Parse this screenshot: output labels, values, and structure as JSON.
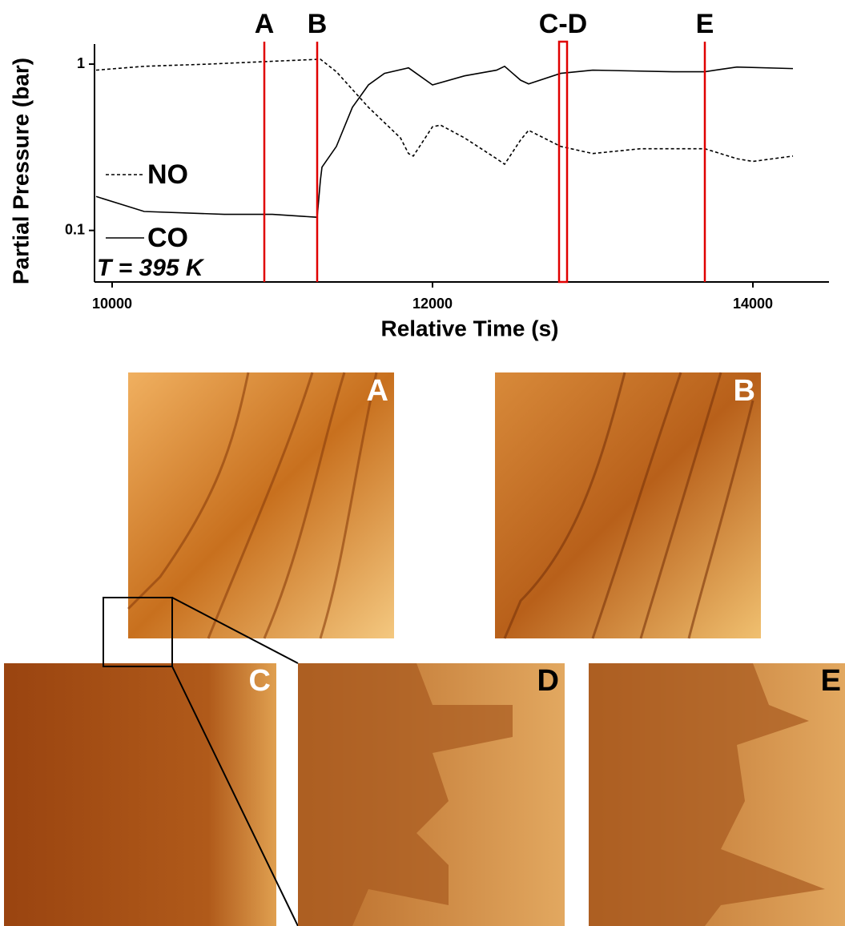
{
  "chart_data": {
    "type": "line",
    "xlabel": "Relative Time (s)",
    "ylabel": "Partial Pressure (bar)",
    "annotation": "T = 395 K",
    "log_y": true,
    "legend": "left",
    "xlim": [
      9890,
      14475
    ],
    "ylim": [
      0.049,
      1.32
    ],
    "xticks": [
      10000,
      12000,
      14000
    ],
    "yticks": [
      0.1,
      1
    ],
    "series": [
      {
        "name": "NO",
        "color": "#000000",
        "dash": true,
        "x": [
          9900,
          10200,
          10600,
          11000,
          11300,
          11400,
          11600,
          11800,
          11850,
          11880,
          12000,
          12050,
          12200,
          12400,
          12450,
          12550,
          12600,
          12800,
          13000,
          13300,
          13700,
          13900,
          14000,
          14250
        ],
        "values": [
          0.92,
          0.97,
          1.0,
          1.04,
          1.07,
          0.9,
          0.55,
          0.36,
          0.29,
          0.28,
          0.42,
          0.43,
          0.36,
          0.27,
          0.25,
          0.35,
          0.4,
          0.32,
          0.29,
          0.31,
          0.31,
          0.27,
          0.26,
          0.28
        ]
      },
      {
        "name": "CO",
        "color": "#000000",
        "dash": false,
        "x": [
          9900,
          10200,
          10700,
          11000,
          11280,
          11300,
          11310,
          11400,
          11500,
          11600,
          11700,
          11850,
          12000,
          12200,
          12400,
          12450,
          12550,
          12600,
          12800,
          13000,
          13500,
          13700,
          13800,
          13900,
          14250
        ],
        "values": [
          0.16,
          0.13,
          0.125,
          0.125,
          0.12,
          0.2,
          0.24,
          0.32,
          0.55,
          0.75,
          0.88,
          0.95,
          0.75,
          0.85,
          0.92,
          0.97,
          0.8,
          0.76,
          0.88,
          0.92,
          0.9,
          0.9,
          0.93,
          0.96,
          0.94
        ]
      }
    ],
    "markers": [
      {
        "label": "A",
        "x": [
          10950
        ],
        "color": "#e00000"
      },
      {
        "label": "B",
        "x": [
          11280
        ],
        "color": "#e00000"
      },
      {
        "label": "C-D",
        "x": [
          12790,
          12840
        ],
        "color": "#e00000"
      },
      {
        "label": "E",
        "x": [
          13700
        ],
        "color": "#e00000"
      }
    ]
  },
  "panels": [
    "A",
    "B",
    "C",
    "D",
    "E"
  ]
}
